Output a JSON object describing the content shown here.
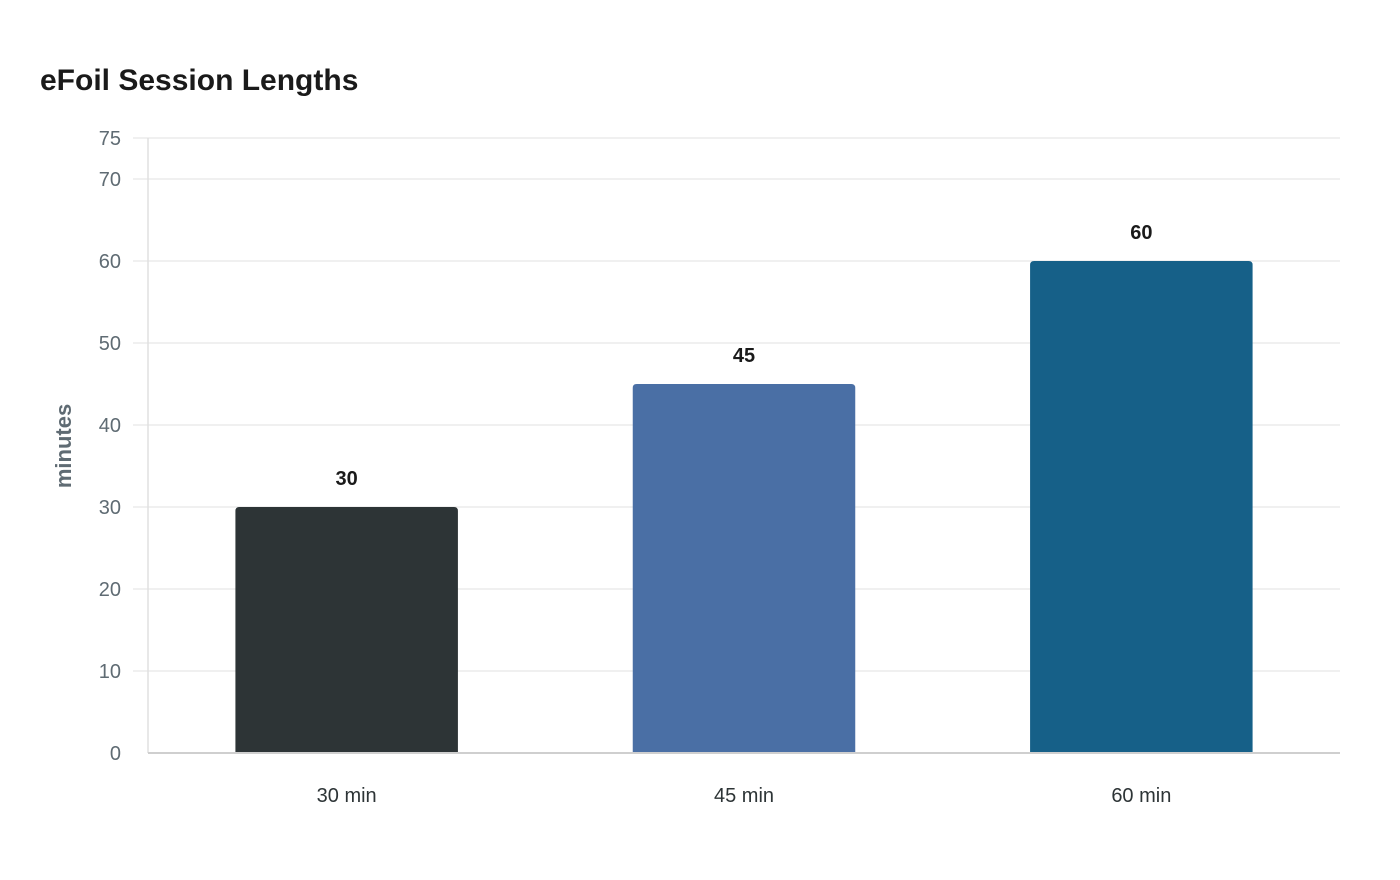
{
  "chart_data": {
    "type": "bar",
    "title": "eFoil Session Lengths",
    "xlabel": "",
    "ylabel": "minutes",
    "categories": [
      "30 min",
      "45 min",
      "60 min"
    ],
    "values": [
      30,
      45,
      60
    ],
    "data_labels": [
      "30",
      "45",
      "60"
    ],
    "colors": [
      "#2d3436",
      "#4a6fa5",
      "#166088"
    ],
    "ylim": [
      0,
      75
    ],
    "yticks": [
      0,
      10,
      20,
      30,
      40,
      50,
      60,
      70,
      75
    ],
    "grid": true,
    "legend": "none"
  }
}
